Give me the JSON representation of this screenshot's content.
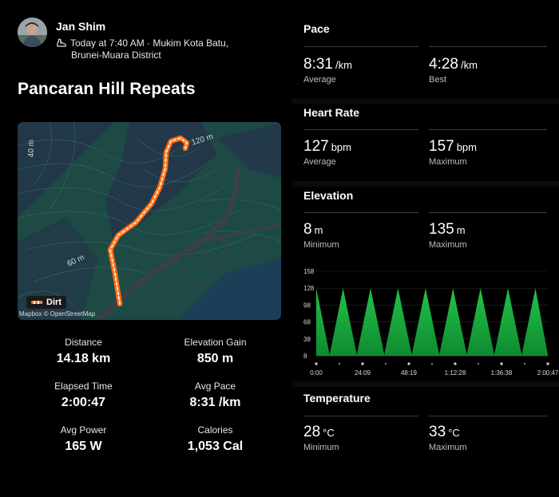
{
  "user": {
    "name": "Jan Shim",
    "meta_line1": "Today at 7:40 AM · Mukim Kota Batu,",
    "meta_line2": "Brunei-Muara District",
    "activity_icon": "shoe-icon"
  },
  "activity": {
    "title": "Pancaran Hill Repeats"
  },
  "map": {
    "contour_labels": [
      "40 m",
      "120 m",
      "60 m"
    ],
    "legend_label": "Dirt",
    "attribution": "Mapbox © OpenStreetMap",
    "colors": {
      "land": "#1d4a44",
      "water": "#1c3f58",
      "road": "#3c3f4a",
      "route": "#ff7a1a"
    }
  },
  "stats": [
    {
      "label": "Distance",
      "value": "14.18 km"
    },
    {
      "label": "Elevation Gain",
      "value": "850 m"
    },
    {
      "label": "Elapsed Time",
      "value": "2:00:47"
    },
    {
      "label": "Avg Pace",
      "value": "8:31 /km"
    },
    {
      "label": "Avg Power",
      "value": "165 W"
    },
    {
      "label": "Calories",
      "value": "1,053 Cal"
    }
  ],
  "pace": {
    "title": "Pace",
    "average": {
      "value": "8:31",
      "unit": "/km",
      "label": "Average"
    },
    "best": {
      "value": "4:28",
      "unit": "/km",
      "label": "Best"
    }
  },
  "heart_rate": {
    "title": "Heart Rate",
    "average": {
      "value": "127",
      "unit": "bpm",
      "label": "Average"
    },
    "maximum": {
      "value": "157",
      "unit": "bpm",
      "label": "Maximum"
    }
  },
  "elevation": {
    "title": "Elevation",
    "minimum": {
      "value": "8",
      "unit": "m",
      "label": "Minimum"
    },
    "maximum": {
      "value": "135",
      "unit": "m",
      "label": "Maximum"
    }
  },
  "temperature": {
    "title": "Temperature",
    "minimum": {
      "value": "28",
      "unit": "°C",
      "label": "Minimum"
    },
    "maximum": {
      "value": "33",
      "unit": "°C",
      "label": "Maximum"
    }
  },
  "chart_data": {
    "type": "area",
    "y_ticks": [
      "158",
      "128",
      "98",
      "68",
      "38",
      "8"
    ],
    "x_ticks": [
      "0:00",
      "24:09",
      "48:19",
      "1:12:28",
      "1:36:38",
      "2:00:47"
    ],
    "ylim": [
      8,
      158
    ],
    "x_range_seconds": [
      0,
      7247
    ],
    "grid": true,
    "fill_color": "#22c24a",
    "peaks_seconds": [
      0,
      840,
      1700,
      2560,
      3420,
      4280,
      5140,
      6000,
      6860
    ],
    "valleys_seconds": [
      420,
      1270,
      2130,
      2990,
      3850,
      4710,
      5570,
      6430,
      7247
    ],
    "peak_value": 128,
    "valley_value": 10
  }
}
